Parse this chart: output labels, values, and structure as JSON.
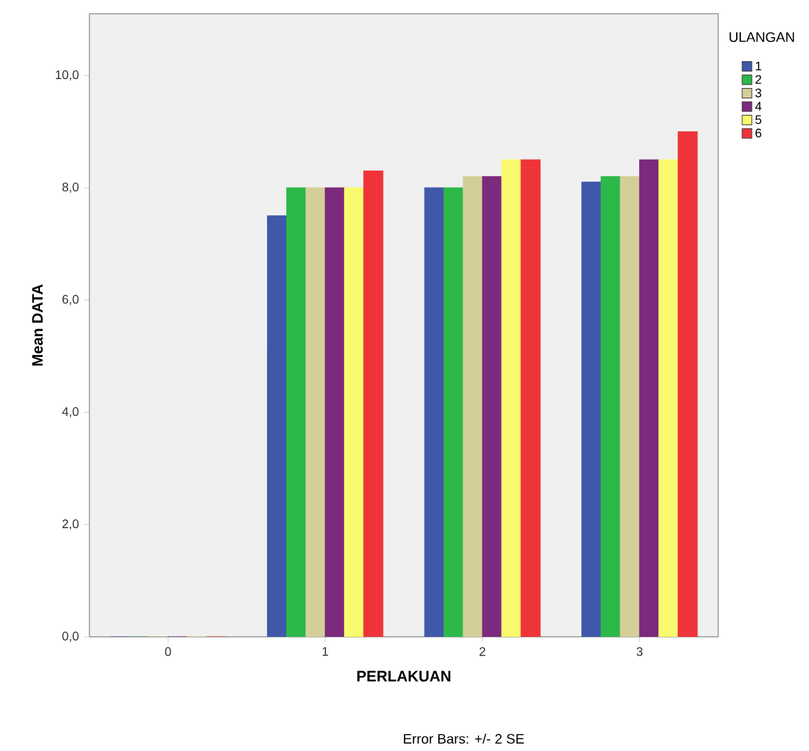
{
  "chart_data": {
    "type": "bar",
    "xlabel": "PERLAKUAN",
    "ylabel": "Mean DATA",
    "legend_title": "ULANGAN",
    "legend": "right",
    "categories": [
      "0",
      "1",
      "2",
      "3"
    ],
    "series": [
      {
        "name": "1",
        "color": "#3f58a9",
        "values": [
          0,
          7.5,
          8.0,
          8.1
        ]
      },
      {
        "name": "2",
        "color": "#2db84a",
        "values": [
          0,
          8.0,
          8.0,
          8.2
        ]
      },
      {
        "name": "3",
        "color": "#d4cf98",
        "values": [
          0,
          8.0,
          8.2,
          8.2
        ]
      },
      {
        "name": "4",
        "color": "#7b2a7e",
        "values": [
          0,
          8.0,
          8.2,
          8.5
        ]
      },
      {
        "name": "5",
        "color": "#fafa6e",
        "values": [
          0,
          8.0,
          8.5,
          8.5
        ]
      },
      {
        "name": "6",
        "color": "#ef3439",
        "values": [
          0,
          8.3,
          8.5,
          9.0
        ]
      }
    ],
    "ylim": [
      0,
      11.1
    ],
    "yticks": [
      {
        "value": 0,
        "label": "0,0"
      },
      {
        "value": 2,
        "label": "2,0"
      },
      {
        "value": 4,
        "label": "4,0"
      },
      {
        "value": 6,
        "label": "6,0"
      },
      {
        "value": 8,
        "label": "8,0"
      },
      {
        "value": 10,
        "label": "10,0"
      }
    ],
    "annotations": [
      "Error Bars: +/- 2 SE"
    ]
  }
}
